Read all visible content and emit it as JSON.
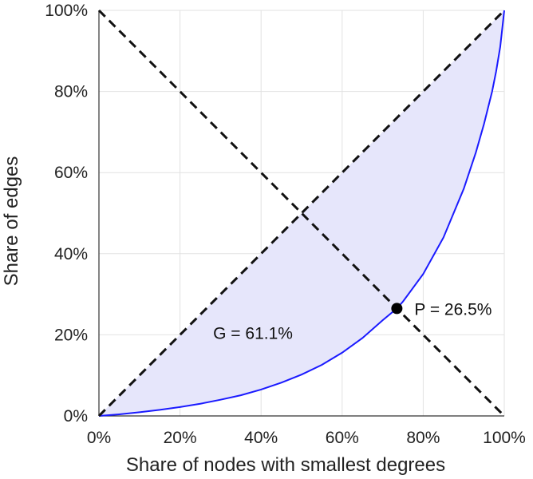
{
  "chart_data": {
    "type": "line",
    "title": "",
    "xlabel": "Share of nodes with smallest degrees",
    "ylabel": "Share of edges",
    "xlim": [
      0,
      100
    ],
    "ylim": [
      0,
      100
    ],
    "x_ticks": [
      "0%",
      "20%",
      "40%",
      "60%",
      "80%",
      "100%"
    ],
    "y_ticks": [
      "0%",
      "20%",
      "40%",
      "60%",
      "80%",
      "100%"
    ],
    "grid": true,
    "series": [
      {
        "style": "solid",
        "color": "#1a1aff",
        "fill": "#e6e6fb",
        "x": [
          0,
          5,
          10,
          15,
          20,
          25,
          30,
          35,
          40,
          45,
          50,
          55,
          60,
          65,
          70,
          73.5,
          75,
          80,
          85,
          90,
          93,
          95,
          97,
          98,
          99,
          100
        ],
        "y": [
          0,
          0.4,
          0.9,
          1.5,
          2.2,
          3.0,
          4.0,
          5.1,
          6.5,
          8.2,
          10.2,
          12.6,
          15.6,
          19.2,
          23.6,
          26.5,
          28.2,
          35,
          44,
          56,
          65,
          72,
          80,
          85,
          91,
          100
        ]
      },
      {
        "style": "dashed",
        "color": "#111111",
        "x": [
          0,
          100
        ],
        "y": [
          0,
          100
        ]
      },
      {
        "style": "dashed",
        "color": "#111111",
        "x": [
          0,
          100
        ],
        "y": [
          100,
          0
        ]
      }
    ],
    "annotations": [
      {
        "text": "G = 61.1%",
        "x": 38,
        "y": 19
      },
      {
        "text": "P = 26.5%",
        "x": 73.5,
        "y": 26.5,
        "marker": "point"
      }
    ]
  }
}
